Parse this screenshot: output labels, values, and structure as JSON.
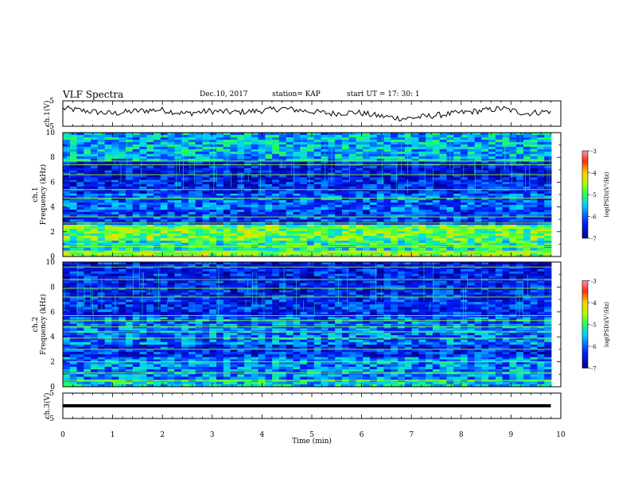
{
  "header": {
    "title": "VLF Spectra",
    "date": "Dec.10, 2017",
    "station": "station= KAP",
    "start": "start  UT =   17: 30: 1"
  },
  "chart_data": [
    {
      "id": "ch1-voltage",
      "type": "line",
      "ylabel": "ch.1(V)",
      "ylim": [
        -5,
        5
      ],
      "yticks": [
        "5",
        "-5"
      ],
      "series": [
        {
          "x": [
            0,
            0.49,
            0.98,
            1.47,
            1.96,
            2.45,
            2.94,
            3.43,
            3.92,
            4.41,
            4.9,
            5.39,
            5.88,
            6.37,
            6.86,
            7.35,
            7.84,
            8.33,
            8.82,
            9.31,
            9.8
          ],
          "values": [
            2,
            1,
            0,
            1,
            1.5,
            0,
            1,
            0.5,
            1,
            2,
            1,
            0,
            0.5,
            -1,
            -2,
            -1,
            0,
            1,
            2,
            0,
            1
          ]
        }
      ]
    },
    {
      "id": "ch1-spectrogram",
      "type": "heatmap",
      "ylabel": "ch.1\nFrequency (kHz)",
      "ylim": [
        0,
        10
      ],
      "yticks": [
        "0",
        "2",
        "4",
        "6",
        "8",
        "10"
      ],
      "colorbar": {
        "label": "log(PSD)(V²/Hz)",
        "range": [
          -7,
          -3
        ],
        "ticks": [
          "-3",
          "-4",
          "-5",
          "-6",
          "-7"
        ]
      },
      "bands_khz": [
        {
          "from": 0,
          "to": 0.5,
          "level": -4.6
        },
        {
          "from": 0.5,
          "to": 1.3,
          "level": -5.2
        },
        {
          "from": 1.3,
          "to": 2.6,
          "level": -4.8
        },
        {
          "from": 2.6,
          "to": 3.8,
          "level": -6.2
        },
        {
          "from": 3.8,
          "to": 5.1,
          "level": -6.0
        },
        {
          "from": 5.1,
          "to": 6.2,
          "level": -6.4
        },
        {
          "from": 6.2,
          "to": 7.7,
          "level": -6.5
        },
        {
          "from": 7.7,
          "to": 10,
          "level": -5.6
        }
      ],
      "lines_khz": [
        0.3,
        0.8,
        2.3,
        2.7,
        3.2,
        4.7,
        5.4,
        6.6,
        7.4,
        7.7
      ]
    },
    {
      "id": "ch2-spectrogram",
      "type": "heatmap",
      "ylabel": "ch.2\nFrequency (kHz)",
      "ylim": [
        0,
        10
      ],
      "yticks": [
        "0",
        "2",
        "4",
        "6",
        "8",
        "10"
      ],
      "colorbar": {
        "label": "log(PSD)(V²/Hz)",
        "range": [
          -7,
          -3
        ],
        "ticks": [
          "-3",
          "-4",
          "-5",
          "-6",
          "-7"
        ]
      },
      "bands_khz": [
        {
          "from": 0,
          "to": 0.6,
          "level": -5.4
        },
        {
          "from": 0.6,
          "to": 2.4,
          "level": -5.8
        },
        {
          "from": 2.4,
          "to": 3.4,
          "level": -6.3
        },
        {
          "from": 3.4,
          "to": 5.6,
          "level": -5.9
        },
        {
          "from": 5.6,
          "to": 7.0,
          "level": -6.3
        },
        {
          "from": 7.0,
          "to": 10,
          "level": -6.4
        }
      ],
      "lines_khz": [
        0.5,
        1.1,
        2.0,
        3.0,
        3.9,
        4.4,
        4.8,
        5.3,
        5.7,
        7.2,
        7.9,
        8.6,
        9.6
      ]
    },
    {
      "id": "ch3-voltage",
      "type": "line",
      "ylabel": "ch.3(V)",
      "ylim": [
        -5,
        5
      ],
      "yticks": [
        "5",
        "-5"
      ],
      "series": [
        {
          "x": [
            0,
            9.8
          ],
          "values": [
            0,
            0
          ]
        }
      ]
    }
  ],
  "x_axis": {
    "label": "Time (min)",
    "range": [
      0,
      10
    ],
    "ticks": [
      "0",
      "1",
      "2",
      "3",
      "4",
      "5",
      "6",
      "7",
      "8",
      "9",
      "10"
    ]
  }
}
